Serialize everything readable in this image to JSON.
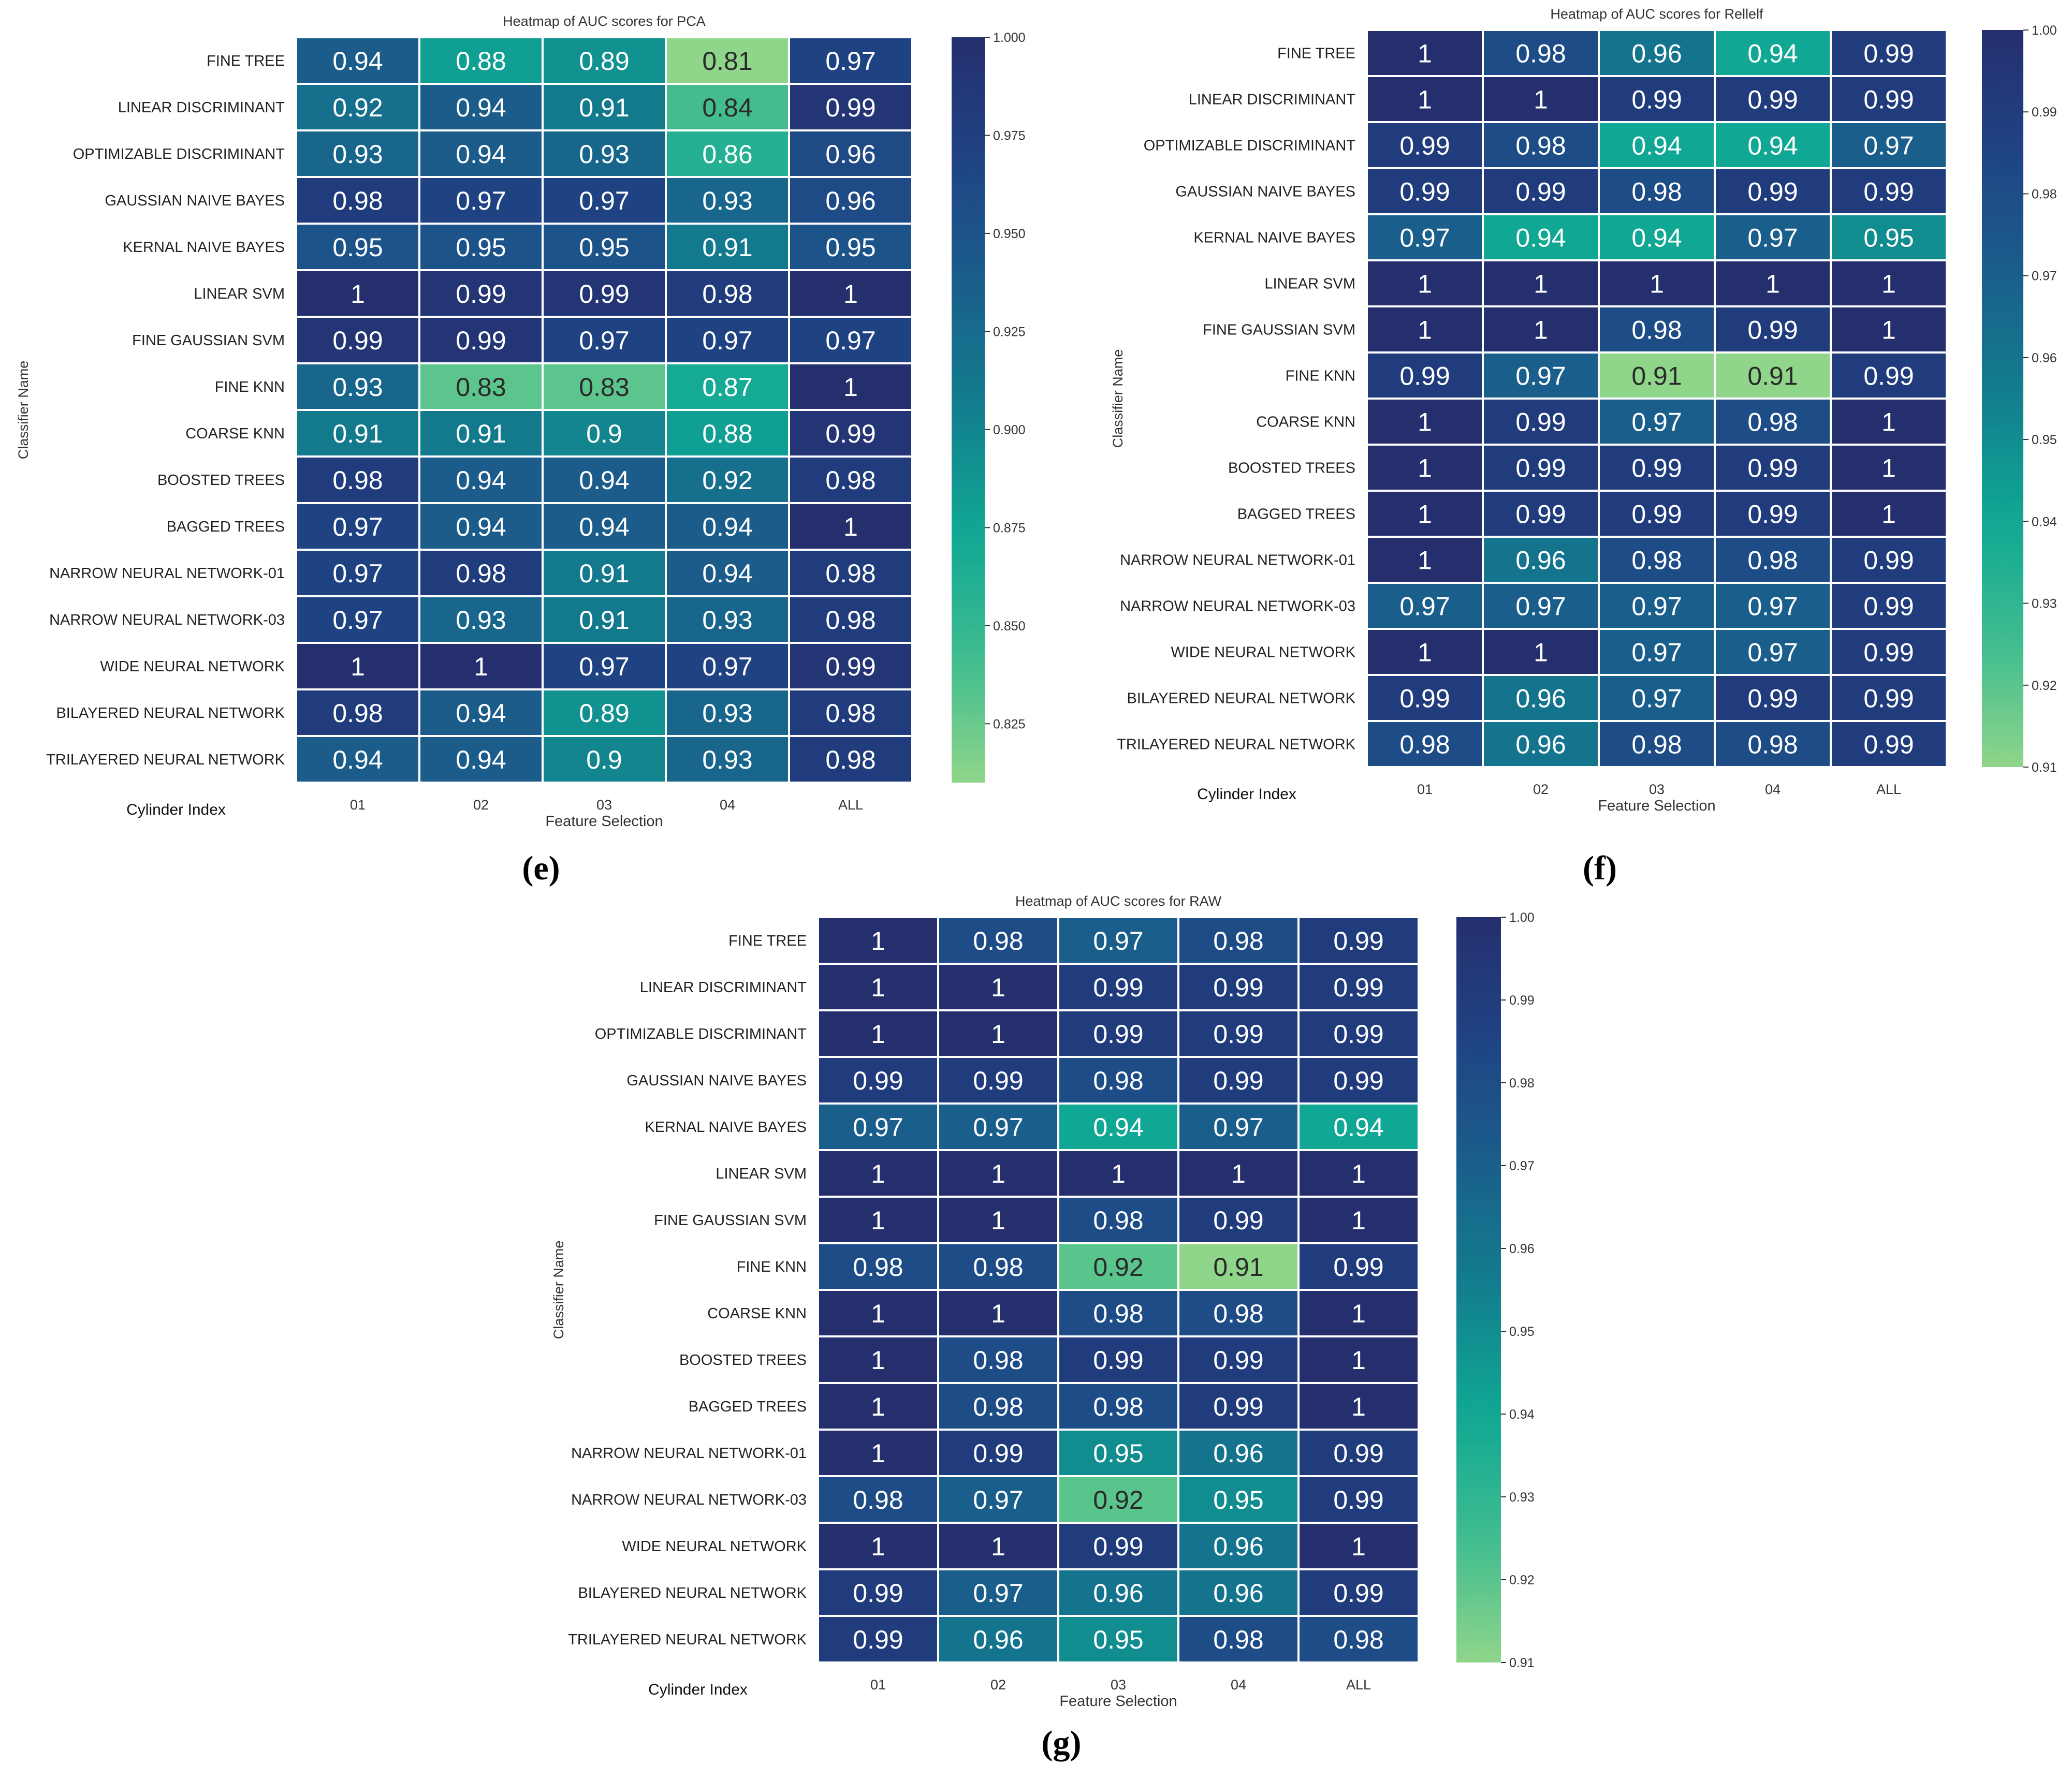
{
  "palette": {
    "low": "#8fd58a",
    "mid_low": "#3fbc8f",
    "mid": "#10a894",
    "mid_high": "#127f8e",
    "high_mid": "#1a5f8c",
    "high": "#1f4384",
    "top": "#252f6e",
    "cell_border": "#ffffff",
    "text_dark": "#2a2a2a",
    "text_light": "#ffffff"
  },
  "captions": [
    "(e)",
    "(f)",
    "(g)"
  ],
  "chart_data": [
    {
      "type": "heatmap",
      "title": "Heatmap of AUC scores for PCA",
      "xlabel": "Feature Selection",
      "ylabel": "Classifier Name",
      "corner_label": "Cylinder Index",
      "columns": [
        "01",
        "02",
        "03",
        "04",
        "ALL"
      ],
      "rows": [
        "FINE TREE",
        "LINEAR DISCRIMINANT",
        "OPTIMIZABLE DISCRIMINANT",
        "GAUSSIAN NAIVE BAYES",
        "KERNAL NAIVE BAYES",
        "LINEAR SVM",
        "FINE GAUSSIAN SVM",
        "FINE KNN",
        "COARSE KNN",
        "BOOSTED TREES",
        "BAGGED TREES",
        "NARROW NEURAL NETWORK-01",
        "NARROW NEURAL NETWORK-03",
        "WIDE NEURAL NETWORK",
        "BILAYERED NEURAL NETWORK",
        "TRILAYERED NEURAL NETWORK"
      ],
      "values": [
        [
          0.94,
          0.88,
          0.89,
          0.81,
          0.97
        ],
        [
          0.92,
          0.94,
          0.91,
          0.84,
          0.99
        ],
        [
          0.93,
          0.94,
          0.93,
          0.86,
          0.96
        ],
        [
          0.98,
          0.97,
          0.97,
          0.93,
          0.96
        ],
        [
          0.95,
          0.95,
          0.95,
          0.91,
          0.95
        ],
        [
          1,
          0.99,
          0.99,
          0.98,
          1
        ],
        [
          0.99,
          0.99,
          0.97,
          0.97,
          0.97
        ],
        [
          0.93,
          0.83,
          0.83,
          0.87,
          1
        ],
        [
          0.91,
          0.91,
          0.9,
          0.88,
          0.99
        ],
        [
          0.98,
          0.94,
          0.94,
          0.92,
          0.98
        ],
        [
          0.97,
          0.94,
          0.94,
          0.94,
          1
        ],
        [
          0.97,
          0.98,
          0.91,
          0.94,
          0.98
        ],
        [
          0.97,
          0.93,
          0.91,
          0.93,
          0.98
        ],
        [
          1,
          1,
          0.97,
          0.97,
          0.99
        ],
        [
          0.98,
          0.94,
          0.89,
          0.93,
          0.98
        ],
        [
          0.94,
          0.94,
          0.9,
          0.93,
          0.98
        ]
      ],
      "vmin": 0.81,
      "vmax": 1.0,
      "colorbar_ticks": [
        "0.825",
        "0.850",
        "0.875",
        "0.900",
        "0.925",
        "0.950",
        "0.975",
        "1.000"
      ]
    },
    {
      "type": "heatmap",
      "title": "Heatmap of AUC scores for Rellelf",
      "xlabel": "Feature Selection",
      "ylabel": "Classifier Name",
      "corner_label": "Cylinder Index",
      "columns": [
        "01",
        "02",
        "03",
        "04",
        "ALL"
      ],
      "rows": [
        "FINE TREE",
        "LINEAR DISCRIMINANT",
        "OPTIMIZABLE DISCRIMINANT",
        "GAUSSIAN NAIVE BAYES",
        "KERNAL NAIVE BAYES",
        "LINEAR SVM",
        "FINE GAUSSIAN SVM",
        "FINE KNN",
        "COARSE KNN",
        "BOOSTED TREES",
        "BAGGED TREES",
        "NARROW NEURAL NETWORK-01",
        "NARROW NEURAL NETWORK-03",
        "WIDE NEURAL NETWORK",
        "BILAYERED NEURAL NETWORK",
        "TRILAYERED NEURAL NETWORK"
      ],
      "values": [
        [
          1,
          0.98,
          0.96,
          0.94,
          0.99
        ],
        [
          1,
          1,
          0.99,
          0.99,
          0.99
        ],
        [
          0.99,
          0.98,
          0.94,
          0.94,
          0.97
        ],
        [
          0.99,
          0.99,
          0.98,
          0.99,
          0.99
        ],
        [
          0.97,
          0.94,
          0.94,
          0.97,
          0.95
        ],
        [
          1,
          1,
          1,
          1,
          1
        ],
        [
          1,
          1,
          0.98,
          0.99,
          1
        ],
        [
          0.99,
          0.97,
          0.91,
          0.91,
          0.99
        ],
        [
          1,
          0.99,
          0.97,
          0.98,
          1
        ],
        [
          1,
          0.99,
          0.99,
          0.99,
          1
        ],
        [
          1,
          0.99,
          0.99,
          0.99,
          1
        ],
        [
          1,
          0.96,
          0.98,
          0.98,
          0.99
        ],
        [
          0.97,
          0.97,
          0.97,
          0.97,
          0.99
        ],
        [
          1,
          1,
          0.97,
          0.97,
          0.99
        ],
        [
          0.99,
          0.96,
          0.97,
          0.99,
          0.99
        ],
        [
          0.98,
          0.96,
          0.98,
          0.98,
          0.99
        ]
      ],
      "vmin": 0.91,
      "vmax": 1.0,
      "colorbar_ticks": [
        "0.91",
        "0.92",
        "0.93",
        "0.94",
        "0.95",
        "0.96",
        "0.97",
        "0.98",
        "0.99",
        "1.00"
      ]
    },
    {
      "type": "heatmap",
      "title": "Heatmap of AUC scores for RAW",
      "xlabel": "Feature Selection",
      "ylabel": "Classifier Name",
      "corner_label": "Cylinder Index",
      "columns": [
        "01",
        "02",
        "03",
        "04",
        "ALL"
      ],
      "rows": [
        "FINE TREE",
        "LINEAR DISCRIMINANT",
        "OPTIMIZABLE DISCRIMINANT",
        "GAUSSIAN NAIVE BAYES",
        "KERNAL NAIVE BAYES",
        "LINEAR SVM",
        "FINE GAUSSIAN SVM",
        "FINE KNN",
        "COARSE KNN",
        "BOOSTED TREES",
        "BAGGED TREES",
        "NARROW NEURAL NETWORK-01",
        "NARROW NEURAL NETWORK-03",
        "WIDE NEURAL NETWORK",
        "BILAYERED NEURAL NETWORK",
        "TRILAYERED NEURAL NETWORK"
      ],
      "values": [
        [
          1,
          0.98,
          0.97,
          0.98,
          0.99
        ],
        [
          1,
          1,
          0.99,
          0.99,
          0.99
        ],
        [
          1,
          1,
          0.99,
          0.99,
          0.99
        ],
        [
          0.99,
          0.99,
          0.98,
          0.99,
          0.99
        ],
        [
          0.97,
          0.97,
          0.94,
          0.97,
          0.94
        ],
        [
          1,
          1,
          1,
          1,
          1
        ],
        [
          1,
          1,
          0.98,
          0.99,
          1
        ],
        [
          0.98,
          0.98,
          0.92,
          0.91,
          0.99
        ],
        [
          1,
          1,
          0.98,
          0.98,
          1
        ],
        [
          1,
          0.98,
          0.99,
          0.99,
          1
        ],
        [
          1,
          0.98,
          0.98,
          0.99,
          1
        ],
        [
          1,
          0.99,
          0.95,
          0.96,
          0.99
        ],
        [
          0.98,
          0.97,
          0.92,
          0.95,
          0.99
        ],
        [
          1,
          1,
          0.99,
          0.96,
          1
        ],
        [
          0.99,
          0.97,
          0.96,
          0.96,
          0.99
        ],
        [
          0.99,
          0.96,
          0.95,
          0.98,
          0.98
        ]
      ],
      "vmin": 0.91,
      "vmax": 1.0,
      "colorbar_ticks": [
        "0.91",
        "0.92",
        "0.93",
        "0.94",
        "0.95",
        "0.96",
        "0.97",
        "0.98",
        "0.99",
        "1.00"
      ]
    }
  ]
}
